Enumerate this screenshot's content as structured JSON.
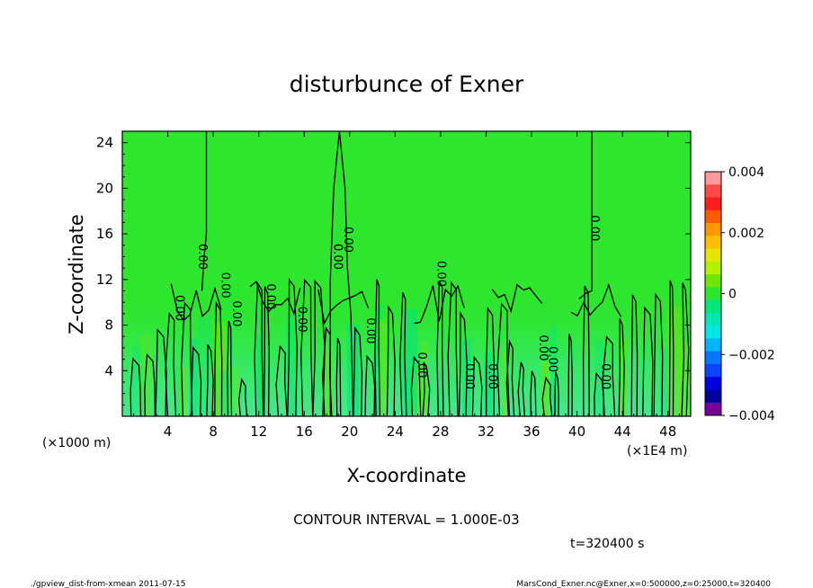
{
  "chart_data": {
    "type": "heatmap",
    "title": "disturbunce of Exner",
    "xlabel": "X-coordinate",
    "ylabel": "Z-coordinate",
    "x_unit_left": "(×1000 m)",
    "x_unit_right": "(×1E4 m)",
    "x_ticks": [
      4,
      8,
      12,
      16,
      20,
      24,
      28,
      32,
      36,
      40,
      44,
      48
    ],
    "y_ticks": [
      4,
      8,
      12,
      16,
      20,
      24
    ],
    "xlim": [
      0,
      50
    ],
    "ylim": [
      0,
      25
    ],
    "colorbar": {
      "ticks": [
        "0.004",
        "0.002",
        "0",
        "−0.002",
        "−0.004"
      ],
      "range": [
        -0.004,
        0.004
      ],
      "colors": [
        "#ff9a9a",
        "#ff4a4a",
        "#ff1e1e",
        "#ff5a00",
        "#ff9600",
        "#ffbe00",
        "#e6e600",
        "#b4f000",
        "#6ee600",
        "#2ee62e",
        "#00e678",
        "#00e6b4",
        "#00e6e6",
        "#00b4ff",
        "#0078ff",
        "#0a46ff",
        "#0000dc",
        "#00009b",
        "#780096"
      ]
    },
    "contour_interval": "CONTOUR INTERVAL = 1.000E-03",
    "contour_labels": [
      {
        "text": "0.00",
        "x": 7.0,
        "z": 14.0
      },
      {
        "text": "0.00",
        "x": 9.0,
        "z": 11.5
      },
      {
        "text": "0.00",
        "x": 5.0,
        "z": 9.5
      },
      {
        "text": "0.00",
        "x": 10.0,
        "z": 9.0
      },
      {
        "text": "0.00",
        "x": 13.0,
        "z": 10.5
      },
      {
        "text": "0.00",
        "x": 15.8,
        "z": 8.5
      },
      {
        "text": "0.00",
        "x": 18.9,
        "z": 14.0
      },
      {
        "text": "0.00",
        "x": 19.8,
        "z": 15.5
      },
      {
        "text": "0.00",
        "x": 21.8,
        "z": 7.5
      },
      {
        "text": "0.00",
        "x": 26.3,
        "z": 4.5
      },
      {
        "text": "0.00",
        "x": 28.0,
        "z": 12.5
      },
      {
        "text": "0.00",
        "x": 30.5,
        "z": 3.5
      },
      {
        "text": "0.00",
        "x": 32.5,
        "z": 3.5
      },
      {
        "text": "0.00",
        "x": 37.0,
        "z": 6.0
      },
      {
        "text": "0.00",
        "x": 37.8,
        "z": 5.0
      },
      {
        "text": "0.00",
        "x": 41.5,
        "z": 16.5
      },
      {
        "text": "0.00",
        "x": 42.5,
        "z": 3.5
      }
    ],
    "time_label": "t=320400 s"
  },
  "footer": {
    "left": "./gpview_dist-from-xmean  2011-07-15",
    "right": "MarsCond_Exner.nc@Exner,x=0:500000,z=0:25000,t=320400"
  }
}
